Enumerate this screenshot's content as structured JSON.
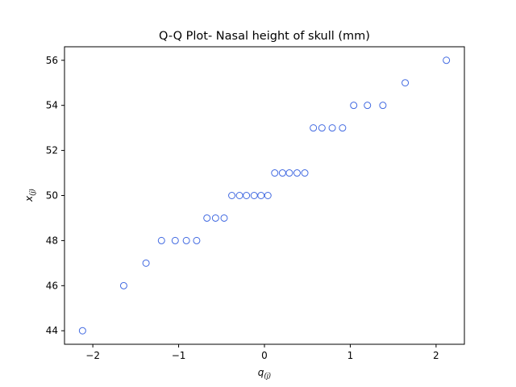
{
  "chart_data": {
    "type": "scatter",
    "title": "Q-Q Plot- Nasal height of skull (mm)",
    "xlabel": {
      "base": "q",
      "sub": "(j)"
    },
    "ylabel": {
      "base": "x",
      "sub": "(j)"
    },
    "xlim": [
      -2.33,
      2.33
    ],
    "ylim": [
      43.4,
      56.6
    ],
    "xticks": [
      -2,
      -1,
      0,
      1,
      2
    ],
    "xtick_labels": [
      "−2",
      "−1",
      "0",
      "1",
      "2"
    ],
    "yticks": [
      44,
      46,
      48,
      50,
      52,
      54,
      56
    ],
    "ytick_labels": [
      "44",
      "46",
      "48",
      "50",
      "52",
      "54",
      "56"
    ],
    "grid": false,
    "marker": "open-circle",
    "color": "#4169e1",
    "points": [
      {
        "x": -2.12,
        "y": 44
      },
      {
        "x": -1.64,
        "y": 46
      },
      {
        "x": -1.38,
        "y": 47
      },
      {
        "x": -1.2,
        "y": 48
      },
      {
        "x": -1.04,
        "y": 48
      },
      {
        "x": -0.91,
        "y": 48
      },
      {
        "x": -0.79,
        "y": 48
      },
      {
        "x": -0.67,
        "y": 49
      },
      {
        "x": -0.57,
        "y": 49
      },
      {
        "x": -0.47,
        "y": 49
      },
      {
        "x": -0.38,
        "y": 50
      },
      {
        "x": -0.29,
        "y": 50
      },
      {
        "x": -0.21,
        "y": 50
      },
      {
        "x": -0.12,
        "y": 50
      },
      {
        "x": -0.04,
        "y": 50
      },
      {
        "x": 0.04,
        "y": 50
      },
      {
        "x": 0.12,
        "y": 51
      },
      {
        "x": 0.21,
        "y": 51
      },
      {
        "x": 0.29,
        "y": 51
      },
      {
        "x": 0.38,
        "y": 51
      },
      {
        "x": 0.47,
        "y": 51
      },
      {
        "x": 0.57,
        "y": 53
      },
      {
        "x": 0.67,
        "y": 53
      },
      {
        "x": 0.79,
        "y": 53
      },
      {
        "x": 0.91,
        "y": 53
      },
      {
        "x": 1.04,
        "y": 54
      },
      {
        "x": 1.2,
        "y": 54
      },
      {
        "x": 1.38,
        "y": 54
      },
      {
        "x": 1.64,
        "y": 55
      },
      {
        "x": 2.12,
        "y": 56
      }
    ]
  }
}
